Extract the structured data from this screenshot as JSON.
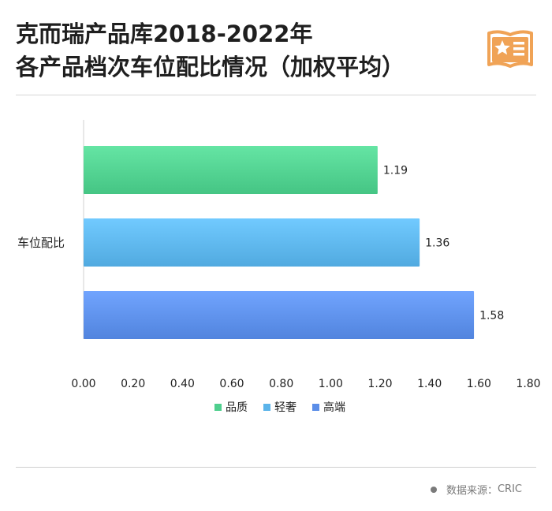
{
  "title_line1": "克而瑞产品库2018-2022年",
  "title_line2": "各产品档次车位配比情况（加权平均）",
  "logo_icon": "star-document-icon",
  "footer": {
    "label": "数据来源：",
    "source": "CRIC"
  },
  "colors": {
    "品质": "#4fcf8e",
    "轻奢": "#5bb4ea",
    "高端": "#5b8ee8",
    "logo": "#f0a356"
  },
  "chart_data": {
    "type": "bar",
    "orientation": "horizontal",
    "categories": [
      "车位配比"
    ],
    "series": [
      {
        "name": "品质",
        "values": [
          1.19
        ]
      },
      {
        "name": "轻奢",
        "values": [
          1.36
        ]
      },
      {
        "name": "高端",
        "values": [
          1.58
        ]
      }
    ],
    "xlim": [
      0,
      1.8
    ],
    "xticks": [
      "0.00",
      "0.20",
      "0.40",
      "0.60",
      "0.80",
      "1.00",
      "1.20",
      "1.40",
      "1.60",
      "1.80"
    ],
    "data_labels": [
      "1.19",
      "1.36",
      "1.58"
    ],
    "grid": false,
    "legend": "bottom"
  }
}
